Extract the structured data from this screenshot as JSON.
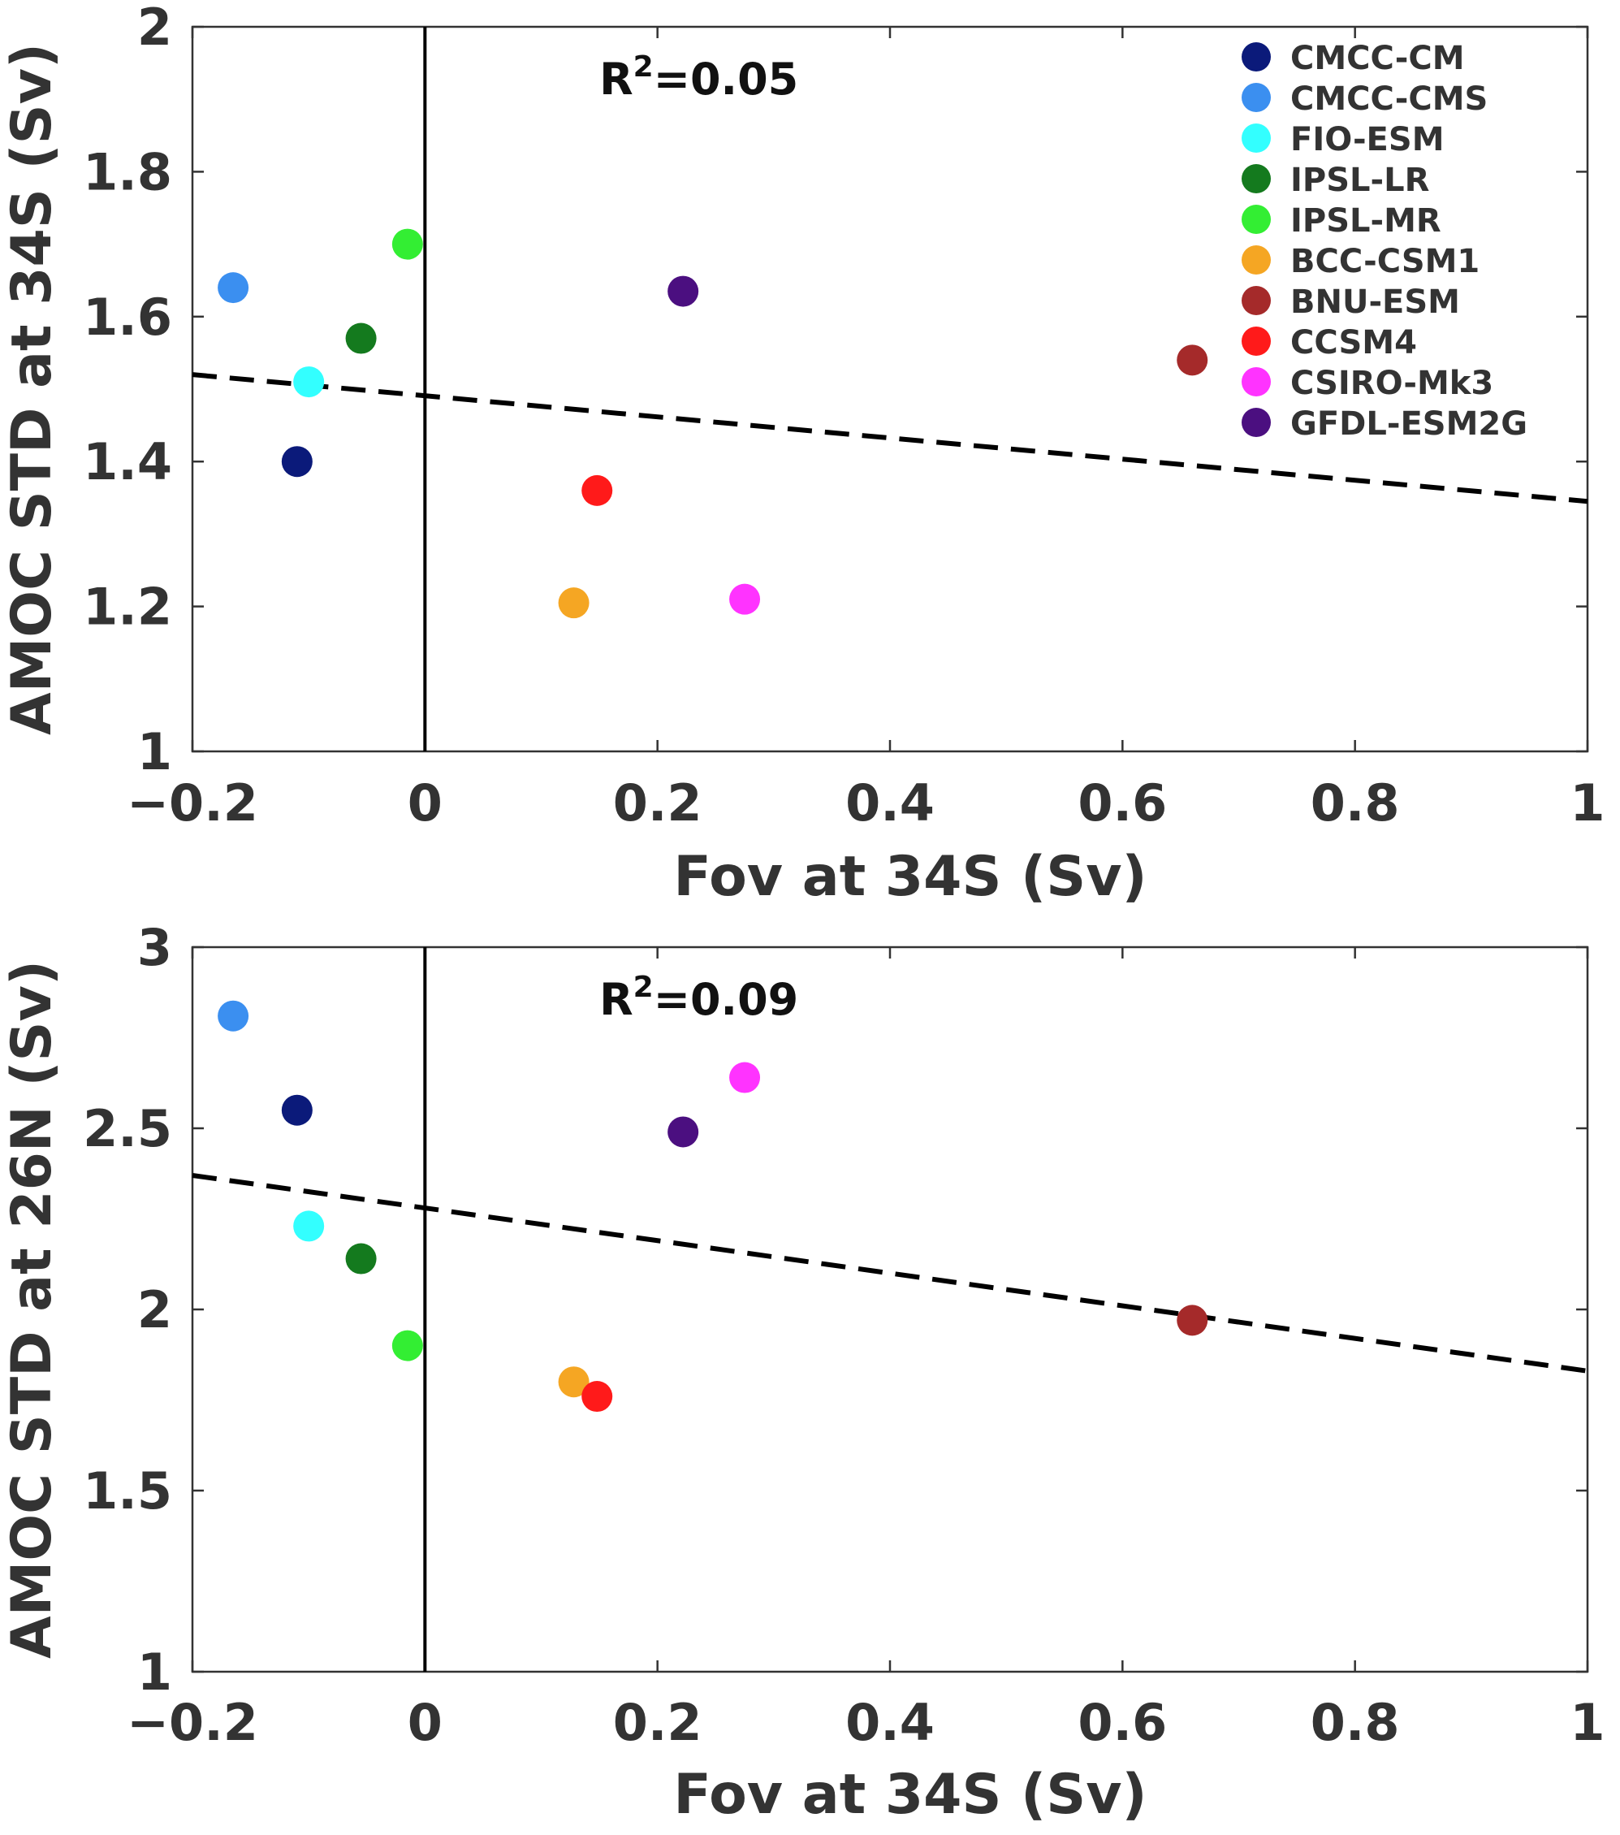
{
  "chart_data": [
    {
      "type": "scatter",
      "title": "",
      "xlabel": "Fov at 34S (Sv)",
      "ylabel": "AMOC STD at 34S (Sv)",
      "xlim": [
        -0.2,
        1
      ],
      "ylim": [
        1,
        2
      ],
      "xticks": [
        "−0.2",
        "0",
        "0.2",
        "0.4",
        "0.6",
        "0.8",
        "1"
      ],
      "xtick_values": [
        -0.2,
        0,
        0.2,
        0.4,
        0.6,
        0.8,
        1
      ],
      "yticks": [
        "1",
        "1.2",
        "1.4",
        "1.6",
        "1.8",
        "2"
      ],
      "ytick_values": [
        1,
        1.2,
        1.4,
        1.6,
        1.8,
        2
      ],
      "annotation_prefix": "R",
      "annotation_sup": "2",
      "annotation_value": "=0.05",
      "vertical_line_x": 0,
      "fit_line": {
        "x": [
          -0.2,
          1
        ],
        "y": [
          1.52,
          1.345
        ]
      },
      "legend_position": "top-right",
      "points": [
        {
          "model": "CMCC-CM",
          "x": -0.11,
          "y": 1.4,
          "color": "#0b1a7a"
        },
        {
          "model": "CMCC-CMS",
          "x": -0.165,
          "y": 1.64,
          "color": "#3b8ff0"
        },
        {
          "model": "FIO-ESM",
          "x": -0.1,
          "y": 1.51,
          "color": "#33ffff"
        },
        {
          "model": "IPSL-LR",
          "x": -0.055,
          "y": 1.57,
          "color": "#147a1e"
        },
        {
          "model": "IPSL-MR",
          "x": -0.015,
          "y": 1.7,
          "color": "#33ee33"
        },
        {
          "model": "BCC-CSM1",
          "x": 0.128,
          "y": 1.205,
          "color": "#f5a623"
        },
        {
          "model": "BNU-ESM",
          "x": 0.66,
          "y": 1.54,
          "color": "#a52a2a"
        },
        {
          "model": "CCSM4",
          "x": 0.148,
          "y": 1.36,
          "color": "#ff1a1a"
        },
        {
          "model": "CSIRO-Mk3",
          "x": 0.275,
          "y": 1.21,
          "color": "#ff33ff"
        },
        {
          "model": "GFDL-ESM2G",
          "x": 0.222,
          "y": 1.635,
          "color": "#4b0f80"
        }
      ]
    },
    {
      "type": "scatter",
      "title": "",
      "xlabel": "Fov at 34S (Sv)",
      "ylabel": "AMOC STD at 26N (Sv)",
      "xlim": [
        -0.2,
        1
      ],
      "ylim": [
        1,
        3
      ],
      "xticks": [
        "−0.2",
        "0",
        "0.2",
        "0.4",
        "0.6",
        "0.8",
        "1"
      ],
      "xtick_values": [
        -0.2,
        0,
        0.2,
        0.4,
        0.6,
        0.8,
        1
      ],
      "yticks": [
        "1",
        "1.5",
        "2",
        "2.5",
        "3"
      ],
      "ytick_values": [
        1,
        1.5,
        2,
        2.5,
        3
      ],
      "annotation_prefix": "R",
      "annotation_sup": "2",
      "annotation_value": "=0.09",
      "vertical_line_x": 0,
      "fit_line": {
        "x": [
          -0.2,
          1
        ],
        "y": [
          2.37,
          1.83
        ]
      },
      "points": [
        {
          "model": "CMCC-CM",
          "x": -0.11,
          "y": 2.55,
          "color": "#0b1a7a"
        },
        {
          "model": "CMCC-CMS",
          "x": -0.165,
          "y": 2.81,
          "color": "#3b8ff0"
        },
        {
          "model": "FIO-ESM",
          "x": -0.1,
          "y": 2.23,
          "color": "#33ffff"
        },
        {
          "model": "IPSL-LR",
          "x": -0.055,
          "y": 2.14,
          "color": "#147a1e"
        },
        {
          "model": "IPSL-MR",
          "x": -0.015,
          "y": 1.9,
          "color": "#33ee33"
        },
        {
          "model": "BCC-CSM1",
          "x": 0.128,
          "y": 1.8,
          "color": "#f5a623"
        },
        {
          "model": "BNU-ESM",
          "x": 0.66,
          "y": 1.97,
          "color": "#a52a2a"
        },
        {
          "model": "CCSM4",
          "x": 0.148,
          "y": 1.76,
          "color": "#ff1a1a"
        },
        {
          "model": "CSIRO-Mk3",
          "x": 0.275,
          "y": 2.64,
          "color": "#ff33ff"
        },
        {
          "model": "GFDL-ESM2G",
          "x": 0.222,
          "y": 2.49,
          "color": "#4b0f80"
        }
      ]
    }
  ]
}
